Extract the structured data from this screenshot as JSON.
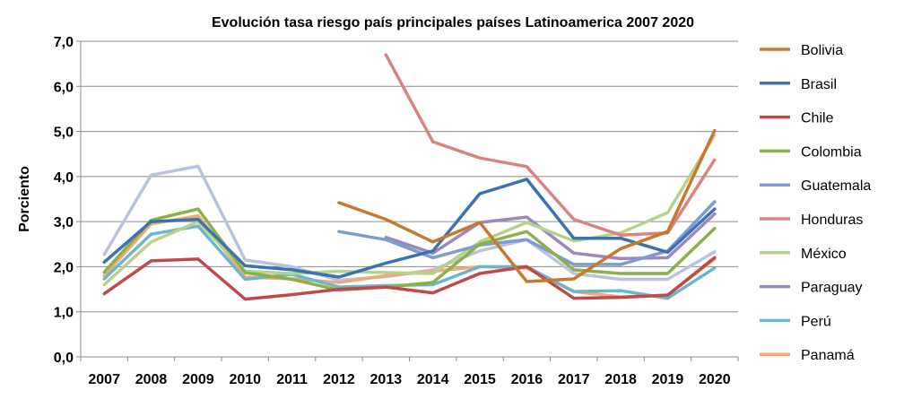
{
  "chart_data": {
    "type": "line",
    "title": "Evolución tasa riesgo país principales países Latinoamerica 2007 2020",
    "xlabel": "",
    "ylabel": "Porciento",
    "ylim": [
      0,
      7
    ],
    "yticks": [
      "0,0",
      "1,0",
      "2,0",
      "3,0",
      "4,0",
      "5,0",
      "6,0",
      "7,0"
    ],
    "categories": [
      "2007",
      "2008",
      "2009",
      "2010",
      "2011",
      "2012",
      "2013",
      "2014",
      "2015",
      "2016",
      "2017",
      "2018",
      "2019",
      "2020"
    ],
    "grid": true,
    "legend_position": "right",
    "series": [
      {
        "name": "Bolivia",
        "color": "#C8782F",
        "values": [
          null,
          null,
          null,
          null,
          null,
          3.42,
          3.05,
          2.55,
          2.98,
          1.67,
          1.73,
          2.4,
          2.78,
          5.02
        ]
      },
      {
        "name": "Brasil",
        "color": "#3D72B0",
        "values": [
          2.1,
          3.0,
          3.05,
          2.02,
          1.93,
          1.77,
          2.08,
          2.35,
          3.62,
          3.94,
          2.63,
          2.63,
          2.32,
          3.28
        ]
      },
      {
        "name": "Chile",
        "color": "#BF4B48",
        "values": [
          1.4,
          2.13,
          2.17,
          1.28,
          1.38,
          1.5,
          1.55,
          1.42,
          1.85,
          2.0,
          1.3,
          1.32,
          1.37,
          2.2
        ]
      },
      {
        "name": "Colombia",
        "color": "#8CB04A",
        "values": [
          1.88,
          3.03,
          3.28,
          1.87,
          1.72,
          1.48,
          1.55,
          1.65,
          2.5,
          2.78,
          1.93,
          1.85,
          1.85,
          2.85
        ]
      },
      {
        "name": "Guatemala",
        "color": "#7E9CCF",
        "values": [
          null,
          null,
          null,
          null,
          null,
          2.78,
          2.6,
          2.2,
          2.48,
          2.6,
          2.05,
          2.05,
          2.35,
          3.44
        ]
      },
      {
        "name": "Honduras",
        "color": "#D98480",
        "values": [
          null,
          null,
          null,
          null,
          null,
          null,
          6.7,
          4.77,
          4.41,
          4.22,
          3.05,
          2.7,
          2.75,
          4.37
        ]
      },
      {
        "name": "México",
        "color": "#B5D38A",
        "values": [
          1.6,
          2.55,
          3.0,
          1.9,
          1.85,
          1.9,
          1.87,
          1.85,
          2.55,
          2.98,
          2.57,
          2.75,
          3.2,
          4.92
        ]
      },
      {
        "name": "Paraguay",
        "color": "#9C88BF",
        "values": [
          null,
          null,
          null,
          null,
          null,
          null,
          2.65,
          2.3,
          2.98,
          3.1,
          2.3,
          2.18,
          2.2,
          3.17
        ]
      },
      {
        "name": "Perú",
        "color": "#6CB6CC",
        "values": [
          1.73,
          2.72,
          2.9,
          1.72,
          1.83,
          1.55,
          1.58,
          1.6,
          2.0,
          2.0,
          1.45,
          1.47,
          1.3,
          1.97
        ]
      },
      {
        "name": "Panamá",
        "color": "#F3A878",
        "values": [
          1.8,
          2.95,
          3.13,
          1.77,
          1.73,
          1.65,
          1.8,
          1.9,
          2.0,
          1.97,
          1.45,
          1.33,
          1.37,
          2.17
        ]
      },
      {
        "name": "",
        "color": "#B8C4DE",
        "values": [
          2.27,
          4.03,
          4.23,
          2.15,
          2.0,
          1.7,
          1.78,
          1.93,
          2.35,
          2.6,
          1.85,
          1.72,
          1.72,
          2.33
        ]
      }
    ]
  }
}
